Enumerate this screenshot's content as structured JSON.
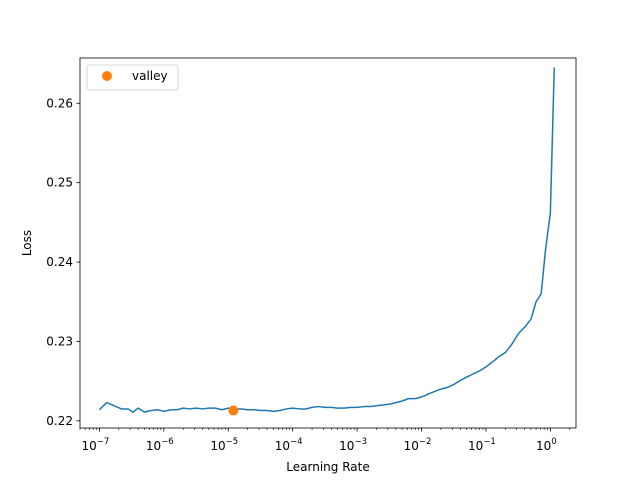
{
  "chart_data": {
    "type": "line",
    "xlabel": "Learning Rate",
    "ylabel": "Loss",
    "xscale": "log",
    "xlim": [
      5e-08,
      2.5
    ],
    "ylim": [
      0.2191,
      0.2657
    ],
    "grid": false,
    "legend": {
      "placement": "top-left",
      "entries": [
        "valley"
      ]
    },
    "x_ticks": [
      {
        "value": 1e-07,
        "base": "10",
        "exp": "−7"
      },
      {
        "value": 1e-06,
        "base": "10",
        "exp": "−6"
      },
      {
        "value": 1e-05,
        "base": "10",
        "exp": "−5"
      },
      {
        "value": 0.0001,
        "base": "10",
        "exp": "−4"
      },
      {
        "value": 0.001,
        "base": "10",
        "exp": "−3"
      },
      {
        "value": 0.01,
        "base": "10",
        "exp": "−2"
      },
      {
        "value": 0.1,
        "base": "10",
        "exp": "−1"
      },
      {
        "value": 1,
        "base": "10",
        "exp": "0"
      }
    ],
    "y_ticks": [
      {
        "value": 0.22,
        "label": "0.22"
      },
      {
        "value": 0.23,
        "label": "0.23"
      },
      {
        "value": 0.24,
        "label": "0.24"
      },
      {
        "value": 0.25,
        "label": "0.25"
      },
      {
        "value": 0.26,
        "label": "0.26"
      }
    ],
    "series": [
      {
        "color": "#1f77b4",
        "points": [
          [
            1e-07,
            0.2214
          ],
          [
            1.3e-07,
            0.2223
          ],
          [
            1.7e-07,
            0.2219
          ],
          [
            2.2e-07,
            0.2215
          ],
          [
            2.8e-07,
            0.2215
          ],
          [
            3.3e-07,
            0.2211
          ],
          [
            4e-07,
            0.2216
          ],
          [
            5e-07,
            0.2211
          ],
          [
            6.3e-07,
            0.2213
          ],
          [
            8e-07,
            0.2214
          ],
          [
            1e-06,
            0.2212
          ],
          [
            1.3e-06,
            0.2214
          ],
          [
            1.6e-06,
            0.2214
          ],
          [
            2e-06,
            0.2216
          ],
          [
            2.5e-06,
            0.2215
          ],
          [
            3.2e-06,
            0.2216
          ],
          [
            4e-06,
            0.2215
          ],
          [
            5e-06,
            0.2216
          ],
          [
            6.3e-06,
            0.2216
          ],
          [
            8e-06,
            0.2214
          ],
          [
            1e-05,
            0.2216
          ],
          [
            1.3e-05,
            0.2215
          ],
          [
            1.6e-05,
            0.2215
          ],
          [
            2e-05,
            0.2214
          ],
          [
            2.5e-05,
            0.2214
          ],
          [
            3.2e-05,
            0.2213
          ],
          [
            4e-05,
            0.2213
          ],
          [
            5e-05,
            0.2212
          ],
          [
            6.3e-05,
            0.2213
          ],
          [
            8e-05,
            0.2215
          ],
          [
            0.0001,
            0.2216
          ],
          [
            0.00013,
            0.2215
          ],
          [
            0.00016,
            0.2215
          ],
          [
            0.0002,
            0.2217
          ],
          [
            0.00025,
            0.2218
          ],
          [
            0.00032,
            0.2217
          ],
          [
            0.0004,
            0.2217
          ],
          [
            0.0005,
            0.2216
          ],
          [
            0.00063,
            0.2216
          ],
          [
            0.0008,
            0.2217
          ],
          [
            0.001,
            0.2217
          ],
          [
            0.0013,
            0.2218
          ],
          [
            0.0016,
            0.2218
          ],
          [
            0.002,
            0.2219
          ],
          [
            0.0025,
            0.222
          ],
          [
            0.0032,
            0.2221
          ],
          [
            0.004,
            0.2223
          ],
          [
            0.005,
            0.2225
          ],
          [
            0.0063,
            0.2228
          ],
          [
            0.008,
            0.2228
          ],
          [
            0.01,
            0.223
          ],
          [
            0.013,
            0.2234
          ],
          [
            0.016,
            0.2237
          ],
          [
            0.02,
            0.224
          ],
          [
            0.025,
            0.2242
          ],
          [
            0.032,
            0.2246
          ],
          [
            0.04,
            0.2251
          ],
          [
            0.05,
            0.2255
          ],
          [
            0.063,
            0.2259
          ],
          [
            0.08,
            0.2263
          ],
          [
            0.1,
            0.2268
          ],
          [
            0.13,
            0.2275
          ],
          [
            0.16,
            0.2281
          ],
          [
            0.2,
            0.2286
          ],
          [
            0.25,
            0.2296
          ],
          [
            0.32,
            0.231
          ],
          [
            0.4,
            0.2318
          ],
          [
            0.5,
            0.2328
          ],
          [
            0.6,
            0.235
          ],
          [
            0.72,
            0.236
          ],
          [
            0.84,
            0.2415
          ],
          [
            1.0,
            0.2462
          ],
          [
            1.15,
            0.2645
          ]
        ]
      }
    ],
    "valley": {
      "label": "valley",
      "x": 1.2e-05,
      "y": 0.2213,
      "color": "#ff7f0e"
    }
  }
}
